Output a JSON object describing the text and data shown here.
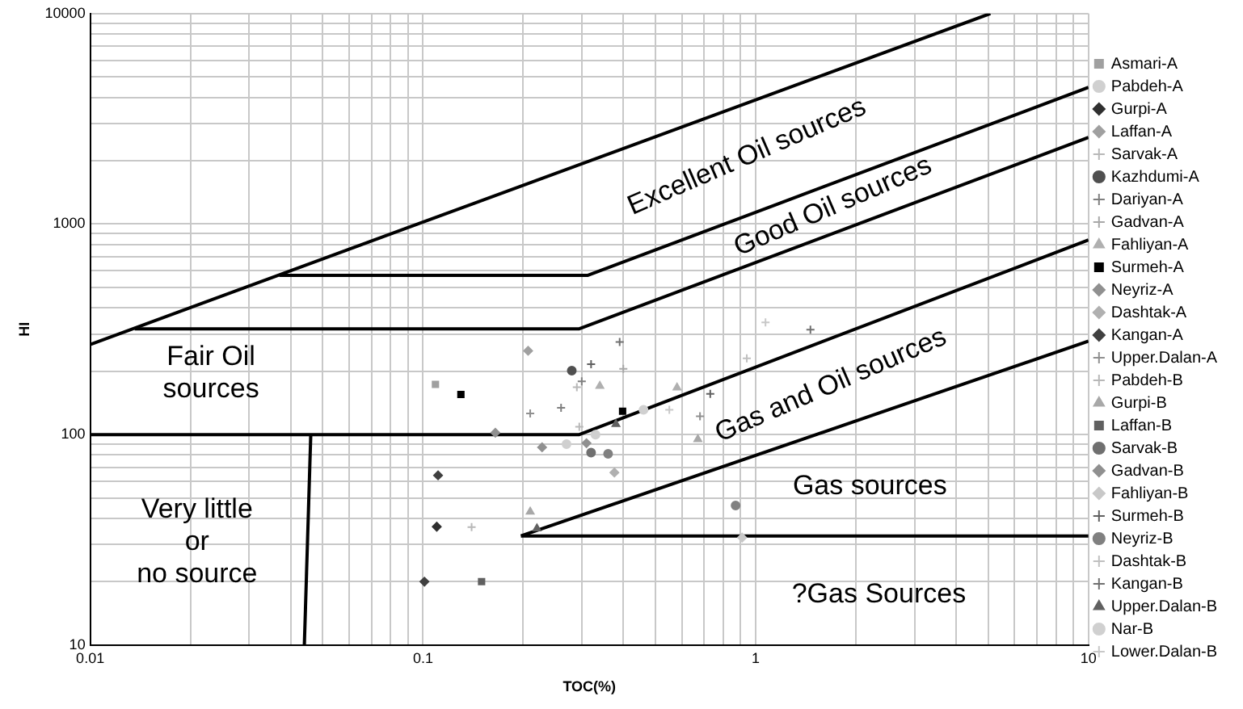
{
  "chart_data": {
    "type": "scatter",
    "xlabel": "TOC(%)",
    "ylabel": "HI",
    "log": "xy",
    "grid": true,
    "legend": "right",
    "xlim": [
      0.01,
      10
    ],
    "ylim": [
      10,
      10000
    ],
    "xticks": [
      0.01,
      {
        "value": 0.02,
        "label": null
      },
      {
        "value": 0.03,
        "label": null
      },
      {
        "value": 0.04,
        "label": null
      },
      {
        "value": 0.05,
        "label": null
      },
      {
        "value": 0.06,
        "label": null
      },
      {
        "value": 0.07,
        "label": null
      },
      {
        "value": 0.08,
        "label": null
      },
      {
        "value": 0.09,
        "label": null
      },
      0.1,
      {
        "value": 0.2,
        "label": null
      },
      {
        "value": 0.3,
        "label": null
      },
      {
        "value": 0.4,
        "label": null
      },
      {
        "value": 0.5,
        "label": null
      },
      {
        "value": 0.6,
        "label": null
      },
      {
        "value": 0.7,
        "label": null
      },
      {
        "value": 0.8,
        "label": null
      },
      {
        "value": 0.9,
        "label": null
      },
      1,
      {
        "value": 2,
        "label": null
      },
      {
        "value": 3,
        "label": null
      },
      {
        "value": 4,
        "label": null
      },
      {
        "value": 5,
        "label": null
      },
      {
        "value": 6,
        "label": null
      },
      {
        "value": 7,
        "label": null
      },
      {
        "value": 8,
        "label": null
      },
      {
        "value": 9,
        "label": null
      },
      10
    ],
    "yticks": [
      10,
      {
        "value": 20,
        "label": null
      },
      {
        "value": 30,
        "label": null
      },
      {
        "value": 40,
        "label": null
      },
      {
        "value": 50,
        "label": null
      },
      {
        "value": 60,
        "label": null
      },
      {
        "value": 70,
        "label": null
      },
      {
        "value": 80,
        "label": null
      },
      {
        "value": 90,
        "label": null
      },
      100,
      {
        "value": 200,
        "label": null
      },
      {
        "value": 300,
        "label": null
      },
      {
        "value": 400,
        "label": null
      },
      {
        "value": 500,
        "label": null
      },
      {
        "value": 600,
        "label": null
      },
      {
        "value": 700,
        "label": null
      },
      {
        "value": 800,
        "label": null
      },
      {
        "value": 900,
        "label": null
      },
      1000,
      {
        "value": 2000,
        "label": null
      },
      {
        "value": 3000,
        "label": null
      },
      {
        "value": 4000,
        "label": null
      },
      {
        "value": 5000,
        "label": null
      },
      {
        "value": 6000,
        "label": null
      },
      {
        "value": 7000,
        "label": null
      },
      {
        "value": 8000,
        "label": null
      },
      {
        "value": 9000,
        "label": null
      },
      10000
    ],
    "series": [
      {
        "name": "Asmari-A",
        "type": "scatter",
        "marker": "square",
        "color": "#a0a0a0",
        "x": [
          0.109
        ],
        "values": [
          173
        ]
      },
      {
        "name": "Pabdeh-A",
        "type": "scatter",
        "marker": "circle",
        "color": "#d0d0d0",
        "x": [
          0.46,
          0.27
        ],
        "values": [
          131,
          90
        ]
      },
      {
        "name": "Gurpi-A",
        "type": "scatter",
        "marker": "diamond",
        "color": "#303030",
        "x": [
          0.11
        ],
        "values": [
          36.5
        ]
      },
      {
        "name": "Laffan-A",
        "type": "scatter",
        "marker": "diamond",
        "color": "#a0a0a0",
        "x": [
          0.207
        ],
        "values": [
          250
        ]
      },
      {
        "name": "Sarvak-A",
        "type": "scatter",
        "marker": "cross",
        "color": "#b8b8b8",
        "x": [
          0.14,
          0.295
        ],
        "values": [
          36.3,
          109
        ]
      },
      {
        "name": "Kazhdumi-A",
        "type": "scatter",
        "marker": "circle",
        "color": "#505050",
        "x": [
          0.28
        ],
        "values": [
          201
        ]
      },
      {
        "name": "Dariyan-A",
        "type": "scatter",
        "marker": "cross",
        "color": "#808080",
        "x": [
          0.26,
          0.3
        ],
        "values": [
          134,
          179
        ]
      },
      {
        "name": "Gadvan-A",
        "type": "scatter",
        "marker": "cross",
        "color": "#a8a8a8",
        "x": [
          0.4
        ],
        "values": [
          205
        ]
      },
      {
        "name": "Fahliyan-A",
        "type": "scatter",
        "marker": "triangle",
        "color": "#b0b0b0",
        "x": [
          0.34,
          0.58
        ],
        "values": [
          170,
          167
        ]
      },
      {
        "name": "Surmeh-A",
        "type": "scatter",
        "marker": "square",
        "color": "#000000",
        "x": [
          0.13,
          0.398
        ],
        "values": [
          155,
          129
        ]
      },
      {
        "name": "Neyriz-A",
        "type": "scatter",
        "marker": "diamond",
        "color": "#909090",
        "x": [
          0.31
        ],
        "values": [
          91
        ]
      },
      {
        "name": "Dashtak-A",
        "type": "scatter",
        "marker": "diamond",
        "color": "#b0b0b0",
        "x": [
          0.376
        ],
        "values": [
          66
        ]
      },
      {
        "name": "Kangan-A",
        "type": "scatter",
        "marker": "diamond",
        "color": "#404040",
        "x": [
          0.111,
          0.101
        ],
        "values": [
          64,
          20
        ]
      },
      {
        "name": "Upper.Dalan-A",
        "type": "scatter",
        "marker": "cross",
        "color": "#909090",
        "x": [
          0.21,
          0.68
        ],
        "values": [
          126,
          122
        ]
      },
      {
        "name": "Pabdeh-B",
        "type": "scatter",
        "marker": "cross",
        "color": "#b8b8b8",
        "x": [
          0.29
        ],
        "values": [
          168
        ]
      },
      {
        "name": "Gurpi-B",
        "type": "scatter",
        "marker": "triangle",
        "color": "#a8a8a8",
        "x": [
          0.21,
          0.67
        ],
        "values": [
          43,
          95
        ]
      },
      {
        "name": "Laffan-B",
        "type": "scatter",
        "marker": "square",
        "color": "#606060",
        "x": [
          0.15
        ],
        "values": [
          20
        ]
      },
      {
        "name": "Sarvak-B",
        "type": "scatter",
        "marker": "circle",
        "color": "#707070",
        "x": [
          0.32
        ],
        "values": [
          82
        ]
      },
      {
        "name": "Gadvan-B",
        "type": "scatter",
        "marker": "diamond",
        "color": "#909090",
        "x": [
          0.228,
          0.165
        ],
        "values": [
          87,
          102
        ]
      },
      {
        "name": "Fahliyan-B",
        "type": "scatter",
        "marker": "diamond",
        "color": "#c8c8c8",
        "x": [
          0.91
        ],
        "values": [
          32.4
        ]
      },
      {
        "name": "Surmeh-B",
        "type": "scatter",
        "marker": "cross",
        "color": "#606060",
        "x": [
          0.32,
          0.73
        ],
        "values": [
          216,
          156
        ]
      },
      {
        "name": "Neyriz-B",
        "type": "scatter",
        "marker": "circle",
        "color": "#808080",
        "x": [
          0.36,
          0.87
        ],
        "values": [
          81,
          46
        ]
      },
      {
        "name": "Dashtak-B",
        "type": "scatter",
        "marker": "cross",
        "color": "#c0c0c0",
        "x": [
          0.94
        ],
        "values": [
          230
        ]
      },
      {
        "name": "Kangan-B",
        "type": "scatter",
        "marker": "cross",
        "color": "#707070",
        "x": [
          0.39,
          1.46
        ],
        "values": [
          275,
          315
        ]
      },
      {
        "name": "Upper.Dalan-B",
        "type": "scatter",
        "marker": "triangle",
        "color": "#606060",
        "x": [
          0.38,
          0.22
        ],
        "values": [
          112,
          35.8
        ]
      },
      {
        "name": "Nar-B",
        "type": "scatter",
        "marker": "circle",
        "color": "#d0d0d0",
        "x": [
          0.33
        ],
        "values": [
          100
        ]
      },
      {
        "name": "Lower.Dalan-B",
        "type": "scatter",
        "marker": "cross",
        "color": "#c8c8c8",
        "x": [
          0.55,
          1.07
        ],
        "values": [
          131,
          341
        ]
      },
      {
        "type": "line",
        "marker": "none",
        "color": "#000000",
        "x": [
          0.01,
          5.07
        ],
        "values": [
          268,
          10000
        ]
      },
      {
        "type": "line",
        "marker": "none",
        "color": "#000000",
        "x": [
          0.037,
          0.312,
          10
        ],
        "values": [
          570,
          570,
          4460
        ]
      },
      {
        "type": "line",
        "marker": "none",
        "color": "#000000",
        "x": [
          0.0136,
          0.295,
          10
        ],
        "values": [
          318,
          318,
          2580
        ]
      },
      {
        "type": "line",
        "marker": "none",
        "color": "#000000",
        "x": [
          0.01,
          0.295,
          10
        ],
        "values": [
          100,
          100,
          840
        ]
      },
      {
        "type": "line",
        "marker": "none",
        "color": "#000000",
        "x": [
          0.197,
          10
        ],
        "values": [
          33,
          278
        ]
      },
      {
        "type": "line",
        "marker": "none",
        "color": "#000000",
        "x": [
          0.197,
          10
        ],
        "values": [
          33,
          33
        ]
      },
      {
        "type": "line",
        "marker": "none",
        "color": "#000000",
        "x": [
          0.046,
          0.044
        ],
        "values": [
          100,
          10
        ]
      }
    ],
    "annotations": [
      "Excellent Oil sources",
      "Good Oil sources",
      "Fair Oil\nsources",
      "Gas and Oil sources",
      "Gas sources",
      "Very little\nor\nno source",
      "?Gas Sources"
    ]
  }
}
